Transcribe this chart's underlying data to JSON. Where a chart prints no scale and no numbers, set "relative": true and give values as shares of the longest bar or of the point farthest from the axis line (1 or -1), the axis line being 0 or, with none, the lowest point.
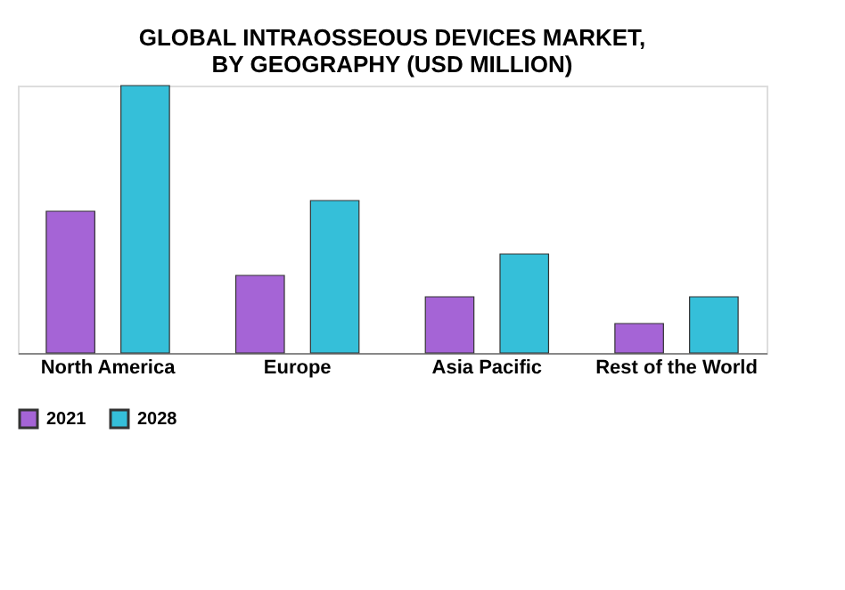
{
  "chart_data": {
    "type": "bar",
    "title": "GLOBAL INTRAOSSEOUS DEVICES MARKET,\nBY GEOGRAPHY (USD MILLION)",
    "relative": true,
    "categories": [
      "North America",
      "Europe",
      "Asia Pacific",
      "Rest of the World"
    ],
    "series": [
      {
        "name": "2021",
        "color": "#a564d6",
        "values": [
          0.53,
          0.29,
          0.21,
          0.11
        ]
      },
      {
        "name": "2028",
        "color": "#35bfd9",
        "values": [
          1,
          0.57,
          0.37,
          0.21
        ]
      }
    ],
    "legend": "bottom",
    "grid": false
  }
}
